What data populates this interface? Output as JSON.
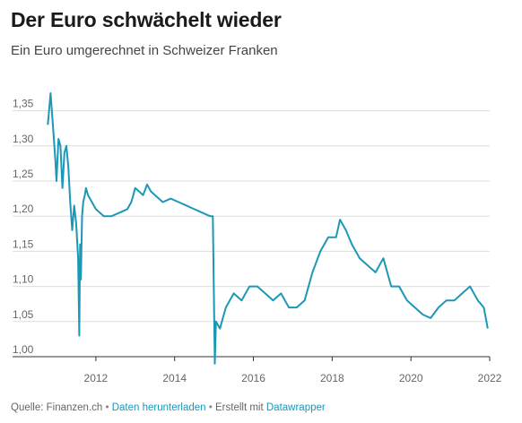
{
  "header": {
    "title": "Der Euro schwächelt wieder",
    "subtitle": "Ein Euro umgerechnet in Schweizer Franken"
  },
  "footer": {
    "source_prefix": "Quelle: Finanzen.ch",
    "separator": " • ",
    "download_link": "Daten herunterladen",
    "created_with": "Erstellt mit ",
    "tool_link": "Datawrapper"
  },
  "colors": {
    "line": "#1c98b7",
    "grid": "#dddddd",
    "link": "#1c98b7"
  },
  "chart_data": {
    "type": "line",
    "title": "Der Euro schwächelt wieder",
    "subtitle": "Ein Euro umgerechnet in Schweizer Franken",
    "xlabel": "",
    "ylabel": "",
    "xlim": [
      2010.75,
      2022.0
    ],
    "ylim": [
      1.0,
      1.375
    ],
    "grid": true,
    "x_ticks": [
      2012,
      2014,
      2016,
      2018,
      2020,
      2022
    ],
    "x_tick_labels": [
      "2012",
      "2014",
      "2016",
      "2018",
      "2020",
      "2022"
    ],
    "y_ticks": [
      1.0,
      1.05,
      1.1,
      1.15,
      1.2,
      1.25,
      1.3,
      1.35
    ],
    "y_tick_labels": [
      "1,00",
      "1,05",
      "1,10",
      "1,15",
      "1,20",
      "1,25",
      "1,30",
      "1,35"
    ],
    "series": [
      {
        "values_unit": "CHF per EUR",
        "x": [
          2010.78,
          2010.85,
          2010.92,
          2010.97,
          2011.0,
          2011.05,
          2011.1,
          2011.15,
          2011.2,
          2011.25,
          2011.3,
          2011.35,
          2011.4,
          2011.45,
          2011.5,
          2011.55,
          2011.58,
          2011.6,
          2011.62,
          2011.65,
          2011.68,
          2011.72,
          2011.75,
          2011.8,
          2011.85,
          2011.9,
          2012.0,
          2012.2,
          2012.4,
          2012.6,
          2012.8,
          2012.9,
          2013.0,
          2013.1,
          2013.2,
          2013.3,
          2013.4,
          2013.5,
          2013.7,
          2013.9,
          2014.1,
          2014.3,
          2014.5,
          2014.7,
          2014.9,
          2014.97,
          2015.02,
          2015.05,
          2015.15,
          2015.3,
          2015.5,
          2015.7,
          2015.9,
          2016.1,
          2016.3,
          2016.5,
          2016.7,
          2016.9,
          2017.1,
          2017.3,
          2017.5,
          2017.7,
          2017.9,
          2018.1,
          2018.2,
          2018.35,
          2018.5,
          2018.7,
          2018.9,
          2019.1,
          2019.3,
          2019.5,
          2019.7,
          2019.9,
          2020.1,
          2020.3,
          2020.5,
          2020.7,
          2020.9,
          2021.1,
          2021.3,
          2021.5,
          2021.7,
          2021.85,
          2021.95
        ],
        "values": [
          1.33,
          1.375,
          1.32,
          1.28,
          1.25,
          1.31,
          1.3,
          1.24,
          1.29,
          1.3,
          1.27,
          1.22,
          1.18,
          1.215,
          1.19,
          1.14,
          1.03,
          1.16,
          1.11,
          1.2,
          1.22,
          1.23,
          1.24,
          1.23,
          1.225,
          1.22,
          1.21,
          1.2,
          1.2,
          1.205,
          1.21,
          1.22,
          1.24,
          1.235,
          1.23,
          1.245,
          1.235,
          1.23,
          1.22,
          1.225,
          1.22,
          1.215,
          1.21,
          1.205,
          1.2,
          1.2,
          0.99,
          1.05,
          1.04,
          1.07,
          1.09,
          1.08,
          1.1,
          1.1,
          1.09,
          1.08,
          1.09,
          1.07,
          1.07,
          1.08,
          1.12,
          1.15,
          1.17,
          1.17,
          1.195,
          1.18,
          1.16,
          1.14,
          1.13,
          1.12,
          1.14,
          1.1,
          1.1,
          1.08,
          1.07,
          1.06,
          1.055,
          1.07,
          1.08,
          1.08,
          1.09,
          1.1,
          1.08,
          1.07,
          1.04
        ]
      }
    ]
  }
}
